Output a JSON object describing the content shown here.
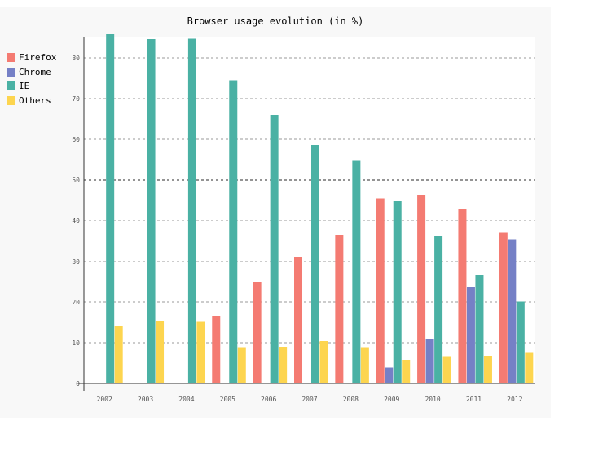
{
  "chart_data": {
    "type": "bar",
    "title": "Browser usage evolution (in %)",
    "xlabel": "",
    "ylabel": "",
    "ylim": [
      0,
      85
    ],
    "yticks": [
      0,
      10,
      20,
      30,
      40,
      50,
      60,
      70,
      80
    ],
    "major_gridline": 50,
    "grid": true,
    "legend_position": "left",
    "categories": [
      "2002",
      "2003",
      "2004",
      "2005",
      "2006",
      "2007",
      "2008",
      "2009",
      "2010",
      "2011",
      "2012"
    ],
    "series": [
      {
        "name": "Firefox",
        "color": "#f47b72",
        "values": [
          null,
          null,
          0,
          16.6,
          25,
          31,
          36.4,
          45.5,
          46.3,
          42.8,
          37.1
        ]
      },
      {
        "name": "Chrome",
        "color": "#7580c6",
        "values": [
          null,
          null,
          null,
          null,
          null,
          null,
          null,
          3.9,
          10.8,
          23.8,
          35.3
        ]
      },
      {
        "name": "IE",
        "color": "#4ab1a4",
        "values": [
          85.8,
          84.6,
          84.7,
          74.5,
          66,
          58.6,
          54.7,
          44.8,
          36.2,
          26.6,
          20.1
        ]
      },
      {
        "name": "Others",
        "color": "#fdd54f",
        "values": [
          14.2,
          15.4,
          15.3,
          8.9,
          9,
          10.4,
          8.9,
          5.8,
          6.7,
          6.8,
          7.5
        ]
      }
    ]
  }
}
